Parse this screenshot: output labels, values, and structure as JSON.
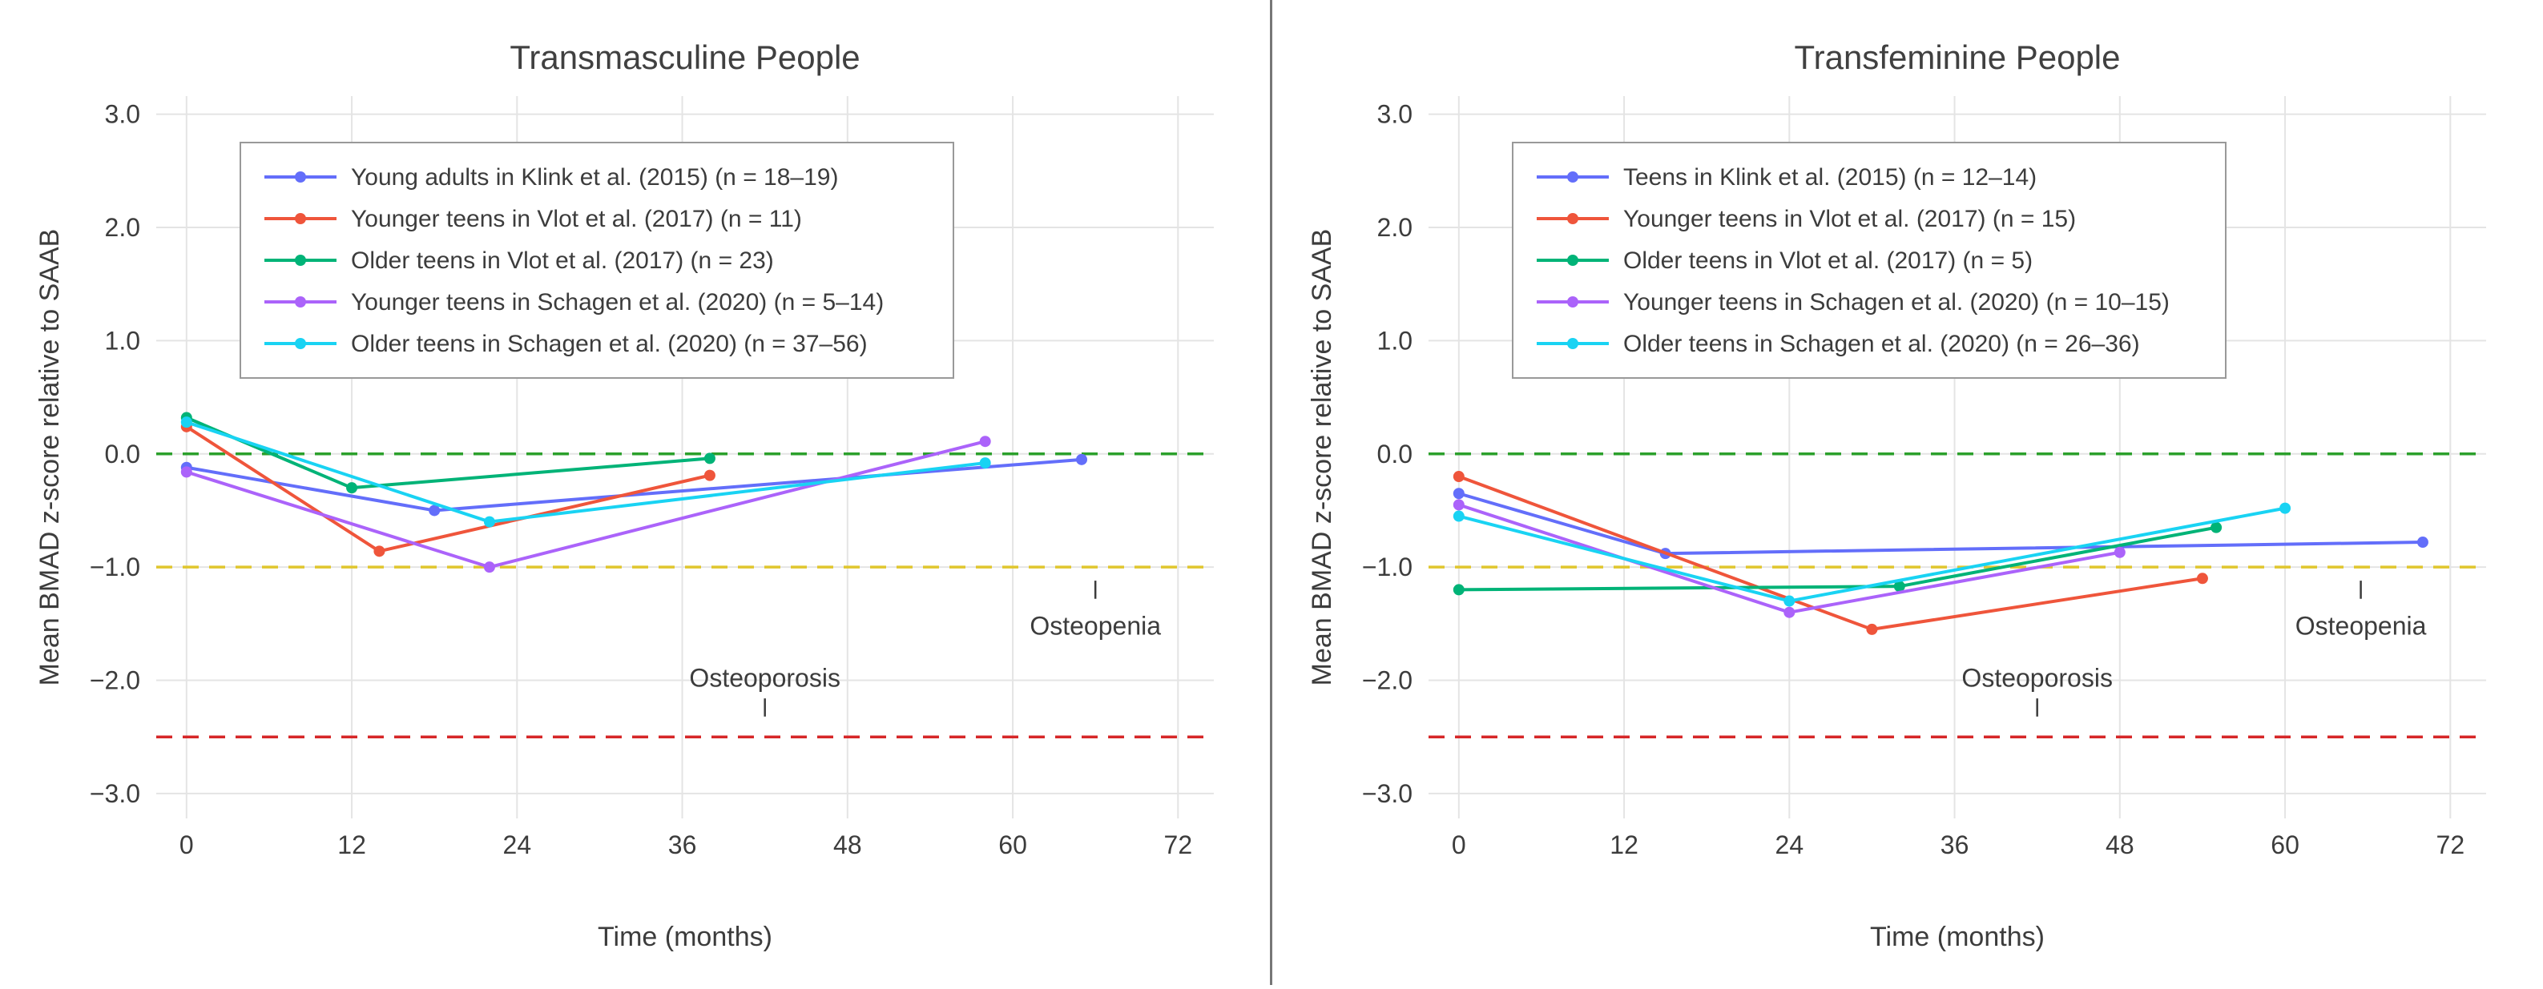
{
  "page": {
    "background": "#ffffff",
    "divider_color": "#777777",
    "grid_color": "#e4e4e4",
    "text_color": "#3c3c3c",
    "title_color": "#404040"
  },
  "chart_data": [
    {
      "id": "transmasculine",
      "type": "line",
      "title": "Transmasculine People",
      "xlabel": "Time (months)",
      "ylabel": "Mean BMAD z-score relative to SAAB",
      "xlim": [
        -2.2,
        74.6
      ],
      "ylim": [
        -3.22,
        3.16
      ],
      "xticks": [
        0,
        12,
        24,
        36,
        48,
        60,
        72
      ],
      "xtick_labels": [
        "0",
        "12",
        "24",
        "36",
        "48",
        "60",
        "72"
      ],
      "yticks": [
        3,
        2,
        1,
        0,
        -1,
        -2,
        -3
      ],
      "ytick_labels": [
        "3.0",
        "2.0",
        "1.0",
        "0.0",
        "−1.0",
        "−2.0",
        "−3.0"
      ],
      "grid": true,
      "legend_position": "top-left",
      "reference_lines": [
        {
          "id": "zero-line",
          "y": 0,
          "color": "#2ca02c",
          "style": "dashed"
        },
        {
          "id": "osteopenia-line",
          "y": -1,
          "color": "#e0c62e",
          "style": "dashed"
        },
        {
          "id": "osteoporosis-line",
          "y": -2.5,
          "color": "#d62728",
          "style": "dashed"
        }
      ],
      "annotations": [
        {
          "id": "osteoporosis-label",
          "text": "Osteoporosis",
          "x": 42,
          "y": -1.98,
          "tick_x": 42,
          "tick_y1": -2.16,
          "tick_y2": -2.32
        },
        {
          "id": "osteopenia-label",
          "text": "Osteopenia",
          "x": 66,
          "y": -1.52,
          "tick_x": 66,
          "tick_y1": -1.12,
          "tick_y2": -1.28
        }
      ],
      "series": [
        {
          "id": "klink-2015",
          "name": "Young adults in Klink et al. (2015) (n = 18–19)",
          "color": "#636efa",
          "x": [
            0,
            18,
            65
          ],
          "y": [
            -0.12,
            -0.5,
            -0.05
          ]
        },
        {
          "id": "vlot-2017-younger",
          "name": "Younger teens in Vlot et al. (2017) (n = 11)",
          "color": "#ef553b",
          "x": [
            0,
            14,
            38
          ],
          "y": [
            0.24,
            -0.86,
            -0.19
          ]
        },
        {
          "id": "vlot-2017-older",
          "name": "Older teens in Vlot et al. (2017) (n = 23)",
          "color": "#00b377",
          "x": [
            0,
            12,
            38
          ],
          "y": [
            0.32,
            -0.3,
            -0.04
          ]
        },
        {
          "id": "schagen-2020-younger",
          "name": "Younger teens in Schagen et al. (2020) (n = 5–14)",
          "color": "#ab63fa",
          "x": [
            0,
            22,
            58
          ],
          "y": [
            -0.16,
            -1.0,
            0.11
          ]
        },
        {
          "id": "schagen-2020-older",
          "name": "Older teens in Schagen et al. (2020) (n = 37–56)",
          "color": "#19d3f3",
          "x": [
            0,
            22,
            58
          ],
          "y": [
            0.28,
            -0.6,
            -0.08
          ]
        }
      ]
    },
    {
      "id": "transfeminine",
      "type": "line",
      "title": "Transfeminine People",
      "xlabel": "Time (months)",
      "ylabel": "Mean BMAD z-score relative to SAAB",
      "xlim": [
        -2.2,
        74.6
      ],
      "ylim": [
        -3.22,
        3.16
      ],
      "xticks": [
        0,
        12,
        24,
        36,
        48,
        60,
        72
      ],
      "xtick_labels": [
        "0",
        "12",
        "24",
        "36",
        "48",
        "60",
        "72"
      ],
      "yticks": [
        3,
        2,
        1,
        0,
        -1,
        -2,
        -3
      ],
      "ytick_labels": [
        "3.0",
        "2.0",
        "1.0",
        "0.0",
        "−1.0",
        "−2.0",
        "−3.0"
      ],
      "grid": true,
      "legend_position": "top-left",
      "reference_lines": [
        {
          "id": "zero-line",
          "y": 0,
          "color": "#2ca02c",
          "style": "dashed"
        },
        {
          "id": "osteopenia-line",
          "y": -1,
          "color": "#e0c62e",
          "style": "dashed"
        },
        {
          "id": "osteoporosis-line",
          "y": -2.5,
          "color": "#d62728",
          "style": "dashed"
        }
      ],
      "annotations": [
        {
          "id": "osteoporosis-label",
          "text": "Osteoporosis",
          "x": 42,
          "y": -1.98,
          "tick_x": 42,
          "tick_y1": -2.16,
          "tick_y2": -2.32
        },
        {
          "id": "osteopenia-label",
          "text": "Osteopenia",
          "x": 65.5,
          "y": -1.52,
          "tick_x": 65.5,
          "tick_y1": -1.12,
          "tick_y2": -1.28
        }
      ],
      "series": [
        {
          "id": "klink-2015",
          "name": "Teens in Klink et al. (2015) (n = 12–14)",
          "color": "#636efa",
          "x": [
            0,
            15,
            70
          ],
          "y": [
            -0.35,
            -0.88,
            -0.78
          ]
        },
        {
          "id": "vlot-2017-younger",
          "name": "Younger teens in Vlot et al. (2017) (n = 15)",
          "color": "#ef553b",
          "x": [
            0,
            30,
            54
          ],
          "y": [
            -0.2,
            -1.55,
            -1.1
          ]
        },
        {
          "id": "vlot-2017-older",
          "name": "Older teens in Vlot et al. (2017) (n = 5)",
          "color": "#00b377",
          "x": [
            0,
            32,
            55
          ],
          "y": [
            -1.2,
            -1.17,
            -0.65
          ]
        },
        {
          "id": "schagen-2020-younger",
          "name": "Younger teens in Schagen et al. (2020) (n = 10–15)",
          "color": "#ab63fa",
          "x": [
            0,
            24,
            48
          ],
          "y": [
            -0.45,
            -1.4,
            -0.87
          ]
        },
        {
          "id": "schagen-2020-older",
          "name": "Older teens in Schagen et al. (2020) (n = 26–36)",
          "color": "#19d3f3",
          "x": [
            0,
            24,
            60
          ],
          "y": [
            -0.55,
            -1.3,
            -0.48
          ]
        }
      ]
    }
  ]
}
